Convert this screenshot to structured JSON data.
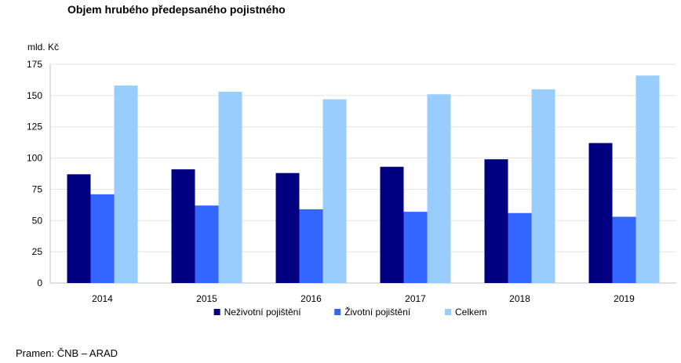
{
  "chart_data": {
    "type": "bar",
    "title": "Objem hrubého předepsaného pojistného",
    "ylabel": "mld. Kč",
    "xlabel": "",
    "categories": [
      "2014",
      "2015",
      "2016",
      "2017",
      "2018",
      "2019"
    ],
    "series": [
      {
        "name": "Neživotní pojištění",
        "color": "#000080",
        "values": [
          87,
          91,
          88,
          93,
          99,
          112
        ]
      },
      {
        "name": "Životní pojištění",
        "color": "#3366ff",
        "values": [
          71,
          62,
          59,
          57,
          56,
          53
        ]
      },
      {
        "name": "Celkem",
        "color": "#99ccff",
        "values": [
          158,
          153,
          147,
          151,
          155,
          166
        ]
      }
    ],
    "ylim": [
      0,
      175
    ],
    "yticks": [
      0,
      25,
      50,
      75,
      100,
      125,
      150,
      175
    ],
    "grid": true,
    "legend_position": "bottom"
  },
  "source": "Pramen: ČNB – ARAD"
}
